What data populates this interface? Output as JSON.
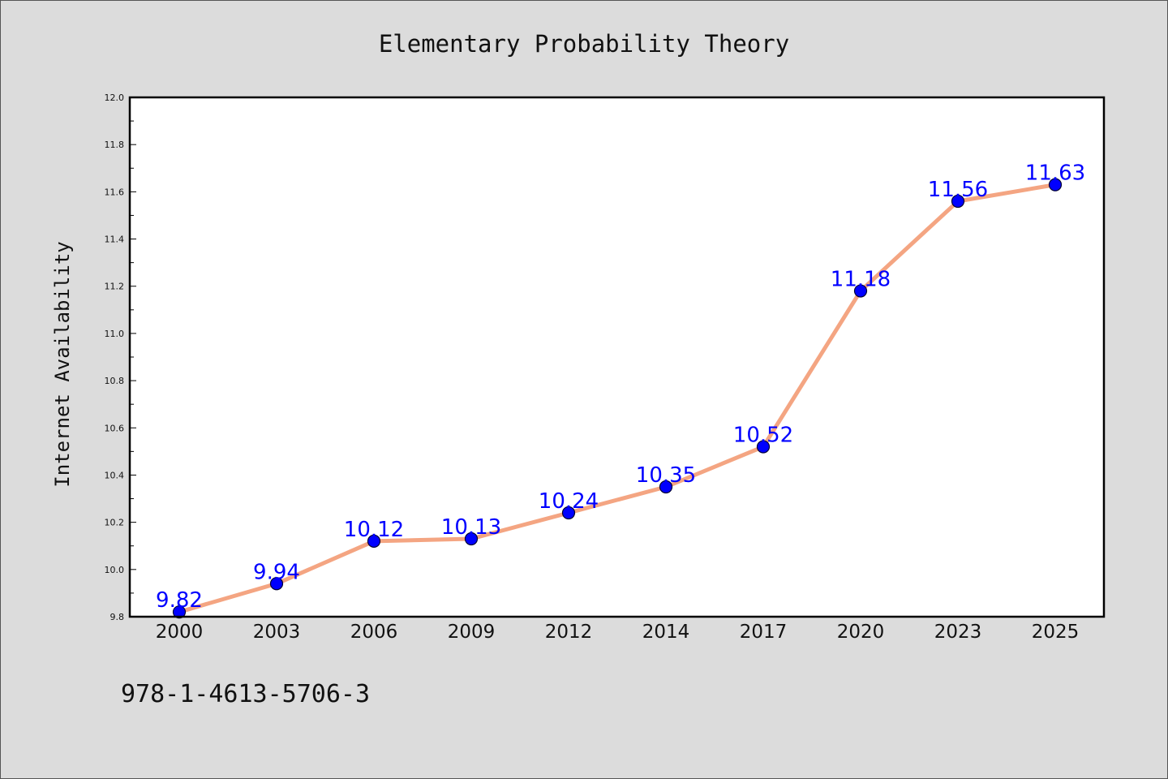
{
  "chart_data": {
    "type": "line",
    "title": "Elementary Probability Theory",
    "xlabel": "",
    "ylabel": "Internet Availability",
    "categories": [
      "2000",
      "2003",
      "2006",
      "2009",
      "2012",
      "2014",
      "2017",
      "2020",
      "2023",
      "2025"
    ],
    "series": [
      {
        "values": [
          9.82,
          9.94,
          10.12,
          10.13,
          10.24,
          10.35,
          10.52,
          11.18,
          11.56,
          11.63
        ],
        "data_labels": [
          "9.82",
          "9.94",
          "10.12",
          "10.13",
          "10.24",
          "10.35",
          "10.52",
          "11.18",
          "11.56",
          "11.63"
        ]
      }
    ],
    "ylim": [
      9.8,
      12.0
    ],
    "yticks": [
      "9.8",
      "10.0",
      "10.2",
      "10.4",
      "10.6",
      "10.8",
      "11.0",
      "11.2",
      "11.4",
      "11.6",
      "11.8",
      "12.0"
    ],
    "grid": false,
    "legend": "none",
    "colors": {
      "line": "#f4a582",
      "marker": "#0000ff",
      "data_label": "#0000ff",
      "background": "#dcdcdc",
      "plot_area": "#ffffff"
    }
  },
  "footer": {
    "isbn": "978-1-4613-5706-3"
  }
}
